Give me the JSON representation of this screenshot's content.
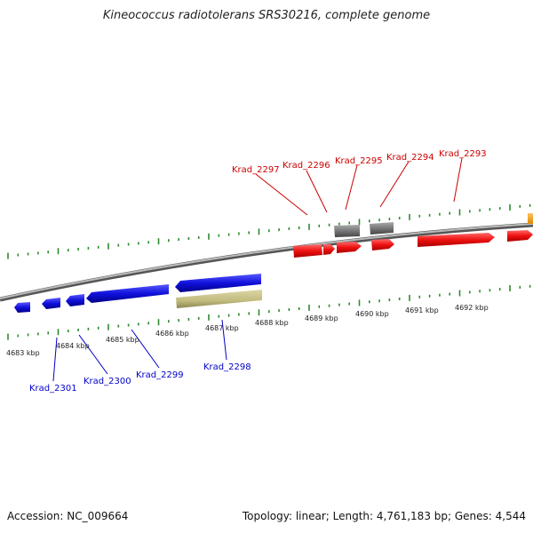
{
  "title": "Kineococcus radiotolerans SRS30216, complete genome",
  "footer": {
    "accession": "Accession: NC_009664",
    "stats": "Topology: linear; Length: 4,761,183 bp; Genes: 4,544"
  },
  "colors": {
    "plus_gene": "#ee1111",
    "minus_gene": "#1111dd",
    "pseudo_gene": "#777777",
    "rna_gene": "#c2bb7e",
    "other_gene": "#f39c12",
    "plus_label": "#cc0000",
    "minus_label": "#0000cc",
    "tick": "#2e8b2e",
    "backbone": "#888888"
  },
  "kbp_labels": [
    "4683 kbp",
    "4684 kbp",
    "4685 kbp",
    "4686 kbp",
    "4687 kbp",
    "4688 kbp",
    "4689 kbp",
    "4690 kbp",
    "4691 kbp",
    "4692 kbp"
  ],
  "top_gene_labels": [
    "Krad_2297",
    "Krad_2296",
    "Krad_2295",
    "Krad_2294",
    "Krad_2293"
  ],
  "bottom_gene_labels": [
    "Krad_2301",
    "Krad_2300",
    "Krad_2299",
    "Krad_2298"
  ]
}
